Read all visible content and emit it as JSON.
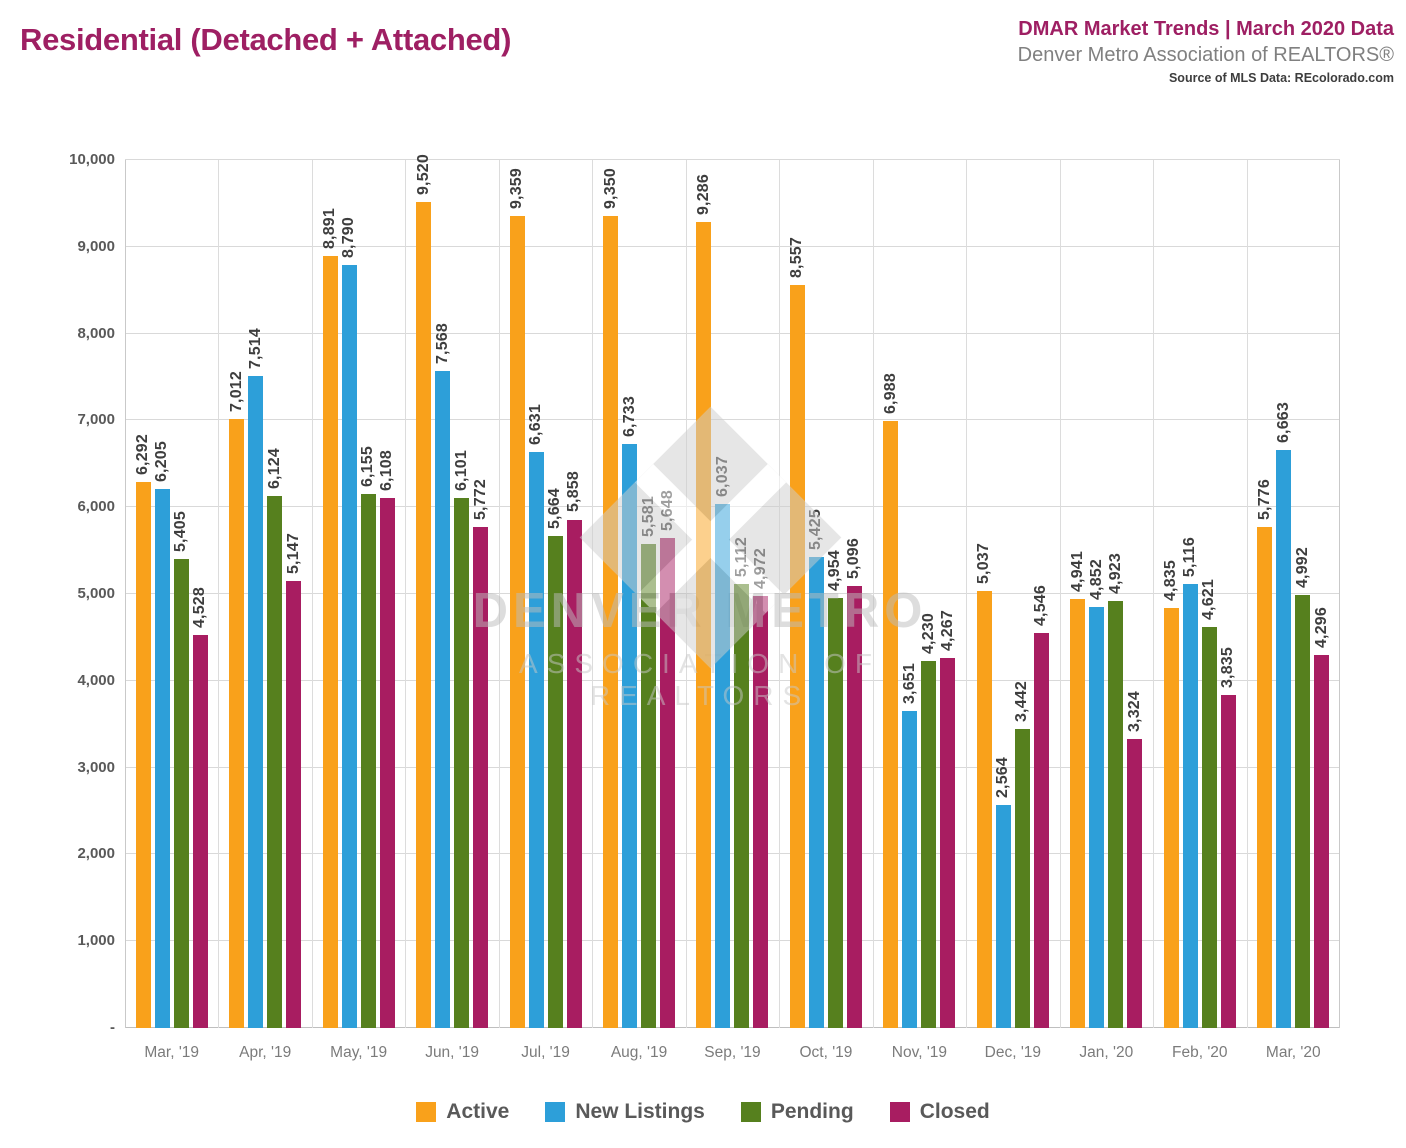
{
  "header": {
    "title": "Residential (Detached + Attached)",
    "trends_title": "DMAR Market Trends | March 2020 Data",
    "org_name": "Denver Metro Association of REALTORS®",
    "source": "Source of MLS Data: REcolorado.com"
  },
  "watermark": {
    "line1": "DENVER METRO",
    "line2": "ASSOCIATION OF REALTORS",
    "logo": "dmar-diamond-logo"
  },
  "chart_data": {
    "type": "bar",
    "title": "Residential (Detached + Attached)",
    "categories": [
      "Mar, '19",
      "Apr, '19",
      "May, '19",
      "Jun, '19",
      "Jul, '19",
      "Aug, '19",
      "Sep, '19",
      "Oct, '19",
      "Nov, '19",
      "Dec, '19",
      "Jan, '20",
      "Feb, '20",
      "Mar, '20"
    ],
    "series": [
      {
        "name": "Active",
        "color": "#F9A11B",
        "values": [
          6292,
          7012,
          8891,
          9520,
          9359,
          9350,
          9286,
          8557,
          6988,
          5037,
          4941,
          4835,
          5776
        ]
      },
      {
        "name": "New Listings",
        "color": "#2D9FD9",
        "values": [
          6205,
          7514,
          8790,
          7568,
          6631,
          6733,
          6037,
          5425,
          3651,
          2564,
          4852,
          5116,
          6663
        ]
      },
      {
        "name": "Pending",
        "color": "#56801E",
        "values": [
          5405,
          6124,
          6155,
          6101,
          5664,
          5581,
          5112,
          4954,
          4230,
          3442,
          4923,
          4621,
          4992
        ]
      },
      {
        "name": "Closed",
        "color": "#A81D61",
        "values": [
          4528,
          5147,
          6108,
          5772,
          5858,
          5648,
          4972,
          5096,
          4267,
          4546,
          3324,
          3835,
          4296
        ]
      }
    ],
    "xlabel": "",
    "ylabel": "",
    "ylim": [
      0,
      10000
    ],
    "ytick_interval": 1000,
    "ytick_labels": [
      "-",
      "1,000",
      "2,000",
      "3,000",
      "4,000",
      "5,000",
      "6,000",
      "7,000",
      "8,000",
      "9,000",
      "10,000"
    ],
    "grid": true,
    "value_labels": true,
    "value_label_rotation": 90,
    "legend_position": "bottom"
  }
}
